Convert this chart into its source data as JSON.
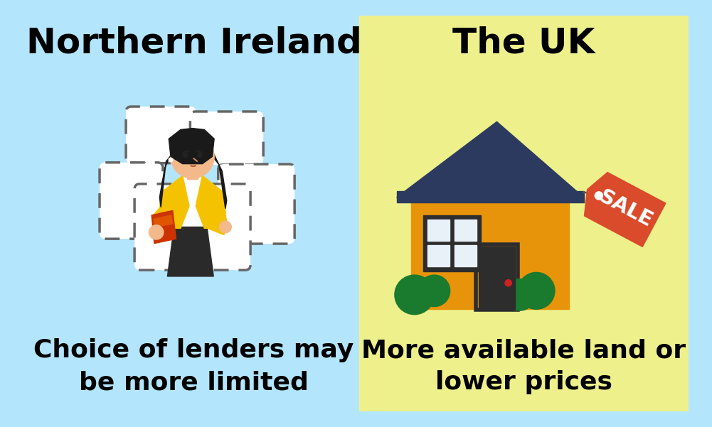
{
  "left_bg": "#b3e5fc",
  "right_bg": "#eef08c",
  "left_title": "Northern Ireland",
  "right_title": "The UK",
  "left_subtitle": "Choice of lenders may\nbe more limited",
  "right_subtitle": "More available land or\nlower prices",
  "title_fontsize": 36,
  "subtitle_fontsize": 26,
  "title_color": "#000000",
  "subtitle_color": "#000000",
  "house_wall": "#e8940a",
  "house_roof": "#2b3a5e",
  "house_window_frame": "#2d2d2d",
  "house_window_glass": "#e8f0f8",
  "house_door": "#2d2d2d",
  "house_door_knob": "#cc2222",
  "house_bush": "#1a7a2e",
  "sale_tag": "#d94b2b",
  "sale_text": "#ffffff",
  "person_skin": "#f4b98a",
  "person_hair": "#1a1a1a",
  "person_jacket": "#f5c200",
  "person_book": "#cc3300",
  "person_skirt": "#2a2a2a",
  "bubble_edge": "#666666",
  "bubble_fill": "#ffffff"
}
